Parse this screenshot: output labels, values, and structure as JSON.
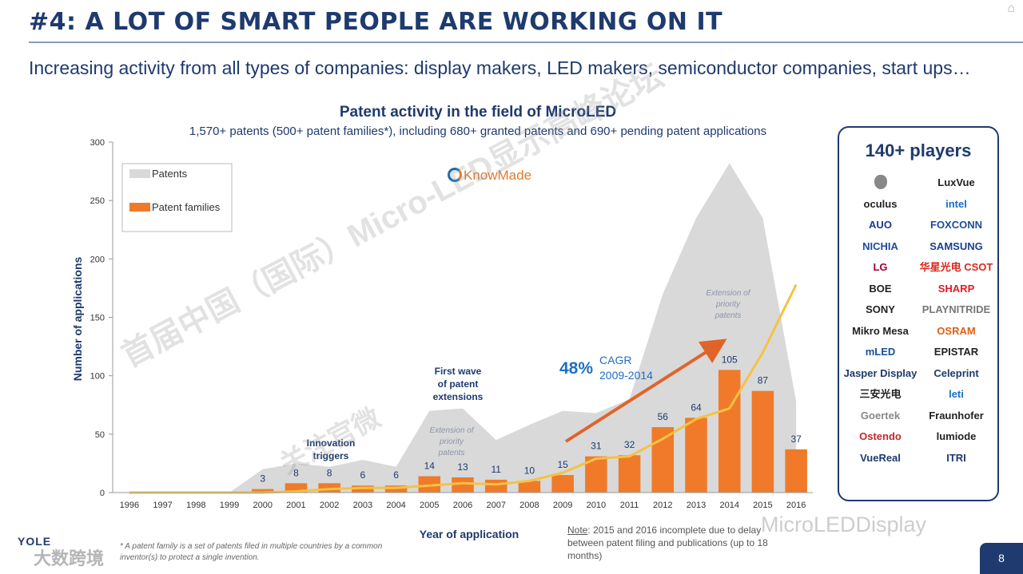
{
  "slide": {
    "title": "#4: A LOT OF SMART PEOPLE ARE WORKING ON IT",
    "subtitle": "Increasing activity from all types of companies: display makers, LED makers, semiconductor companies, start ups…",
    "page_number": "8",
    "brand": "YOLE",
    "corner_icon": "home-icon"
  },
  "chart_data": {
    "type": "bar",
    "title": "Patent activity in the field of MicroLED",
    "subtitle": "1,570+ patents (500+ patent families*), including 680+ granted patents and 690+ pending patent applications",
    "xlabel": "Year of application",
    "ylabel": "Number of applications",
    "ylim": [
      0,
      300
    ],
    "yticks": [
      0,
      50,
      100,
      150,
      200,
      250,
      300
    ],
    "categories": [
      "1996",
      "1997",
      "1998",
      "1999",
      "2000",
      "2001",
      "2002",
      "2003",
      "2004",
      "2005",
      "2006",
      "2007",
      "2008",
      "2009",
      "2010",
      "2011",
      "2012",
      "2013",
      "2014",
      "2015",
      "2016"
    ],
    "series": [
      {
        "name": "Patents",
        "kind": "area",
        "color": "#d9d9d9",
        "values": [
          0,
          0,
          0,
          0,
          20,
          25,
          22,
          28,
          22,
          70,
          72,
          45,
          58,
          70,
          68,
          80,
          170,
          235,
          282,
          235,
          78
        ]
      },
      {
        "name": "Patent families",
        "kind": "bar",
        "color": "#f07a2a",
        "values": [
          0,
          0,
          0,
          0,
          3,
          8,
          8,
          6,
          6,
          14,
          13,
          11,
          10,
          15,
          31,
          32,
          56,
          64,
          105,
          87,
          37
        ],
        "labels": [
          "",
          "",
          "",
          "",
          "3",
          "8",
          "8",
          "6",
          "6",
          "14",
          "13",
          "11",
          "10",
          "15",
          "31",
          "32",
          "56",
          "64",
          "105",
          "87",
          "37"
        ]
      },
      {
        "name": "Trend",
        "kind": "line",
        "color": "#f5c242",
        "values": [
          0,
          0,
          0,
          0,
          0,
          1,
          3,
          4,
          4,
          6,
          8,
          7,
          10,
          17,
          29,
          31,
          46,
          63,
          72,
          120,
          178
        ]
      }
    ],
    "legend": [
      "Patents",
      "Patent families"
    ],
    "legend_position": "top-left",
    "annotations": {
      "innovation_triggers": [
        "Innovation",
        "triggers"
      ],
      "first_wave": [
        "First wave",
        "of patent",
        "extensions"
      ],
      "ext_priority_1": [
        "Extension of",
        "priority",
        "patents"
      ],
      "ext_priority_2": [
        "Extension of",
        "priority",
        "patents"
      ],
      "cagr_value": "48%",
      "cagr_label": "CAGR",
      "cagr_period": "2009-2014"
    }
  },
  "source_logo": "KnowMade",
  "players": {
    "title": "140+ players",
    "logos": [
      {
        "name": "",
        "icon": "apple-icon"
      },
      {
        "name": "LuxVue"
      },
      {
        "name": "oculus"
      },
      {
        "name": "intel"
      },
      {
        "name": "AUO"
      },
      {
        "name": "FOXCONN"
      },
      {
        "name": "NICHIA"
      },
      {
        "name": "SAMSUNG"
      },
      {
        "name": "LG"
      },
      {
        "name": "华星光电 CSOT"
      },
      {
        "name": "BOE"
      },
      {
        "name": "SHARP"
      },
      {
        "name": "SONY"
      },
      {
        "name": "PLAYNITRIDE"
      },
      {
        "name": "Mikro Mesa"
      },
      {
        "name": "OSRAM"
      },
      {
        "name": "mLED"
      },
      {
        "name": "EPISTAR"
      },
      {
        "name": "Jasper Display"
      },
      {
        "name": "Celeprint"
      },
      {
        "name": "三安光电"
      },
      {
        "name": "leti"
      },
      {
        "name": "Goertek"
      },
      {
        "name": "Fraunhofer"
      },
      {
        "name": "Ostendo"
      },
      {
        "name": "lumiode"
      },
      {
        "name": "VueReal"
      },
      {
        "name": "ITRI"
      }
    ]
  },
  "footnote": "* A patent family is a set of patents filed in multiple countries by a common inventor(s) to protect a single invention.",
  "note": {
    "label": "Note",
    "text": ": 2015 and 2016 incomplete due to delay between patent filing and publications (up to 18 months)"
  },
  "watermarks": {
    "main": "首届中国（国际）Micro-LED显示高峰论坛",
    "handle": "MicroLEDDisplay",
    "side": "关注官微",
    "corner": "大数跨境"
  }
}
